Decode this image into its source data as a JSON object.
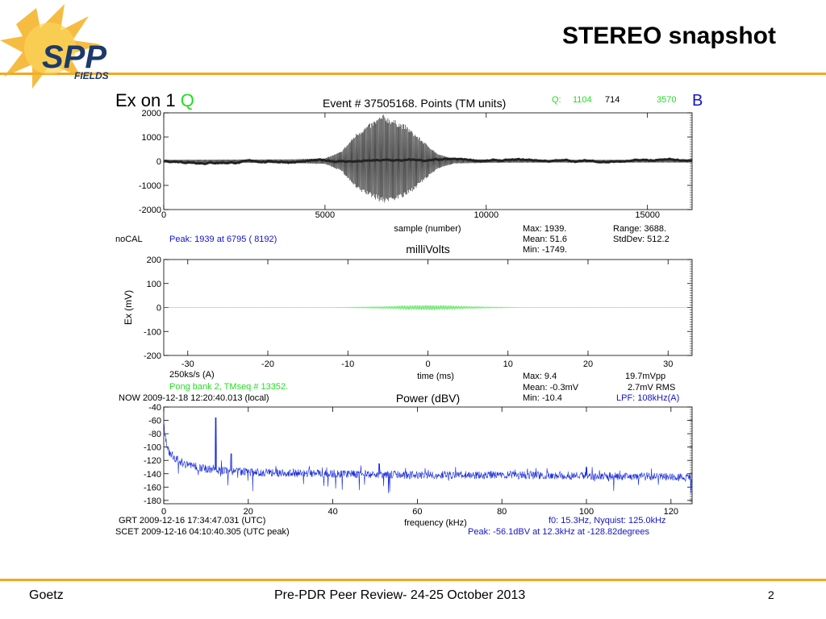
{
  "slide": {
    "title": "STEREO snapshot",
    "logo_text": "SPP",
    "logo_sub": "FIELDS",
    "footer_left": "Goetz",
    "footer_center": "Pre-PDR Peer Review- 24-25 October 2013",
    "page_number": "2",
    "accent_color": "#f5a623"
  },
  "header": {
    "channel": "Ex on 1",
    "channel_q": "Q",
    "event": "Event # 37505168. Points (TM units)",
    "q_label": "Q:",
    "q_value": "1104",
    "mid_value": "714",
    "b_value": "3570",
    "b_label": "B"
  },
  "panel1": {
    "stats": {
      "max": "Max:    1939.",
      "mean": "Mean:     51.6",
      "min": "Min:   -1749.",
      "range": "Range:   3688.",
      "stddev": "StdDev:    512.2"
    },
    "nocal": "noCAL",
    "peak": "Peak:   1939 at  6795 ( 8192)"
  },
  "panel2": {
    "rate": "250ks/s (A)",
    "pong": "Pong bank   2, TMseq # 13352.",
    "now": "NOW 2009-12-18 12:20:40.013 (local)",
    "stats": {
      "max": "Max:      9.4",
      "mean": "Mean:     -0.3mV",
      "min": "Min:     -10.4",
      "vpp": "19.7mVpp",
      "rms": "2.7mV RMS",
      "lpf": "LPF: 108kHz(A)"
    }
  },
  "panel3": {
    "grt": "GRT 2009-12-16 17:34:47.031 (UTC)",
    "scet": "SCET 2009-12-16 04:10:40.305 (UTC peak)",
    "f0": "f0:  15.3Hz, Nyquist: 125.0kHz",
    "peak": "Peak:  -56.1dBV at   12.3kHz at -128.82degrees"
  },
  "chart_data": [
    {
      "type": "line",
      "title": "",
      "xlabel": "sample (number)",
      "ylabel": "",
      "xlim": [
        0,
        16384
      ],
      "ylim": [
        -2000,
        2000
      ],
      "xticks": [
        "0",
        "5000",
        "10000",
        "15000"
      ],
      "yticks": [
        "2000",
        "1000",
        "0",
        "-1000",
        "-2000"
      ],
      "series": [
        {
          "color": "#333333",
          "envelope_x": [
            0,
            2000,
            4000,
            5000,
            5500,
            6000,
            6795,
            7500,
            8000,
            8500,
            9000,
            10000,
            12000,
            16384
          ],
          "envelope_max": [
            60,
            70,
            80,
            120,
            400,
            1200,
            1939,
            1500,
            900,
            300,
            100,
            70,
            60,
            60
          ],
          "envelope_min": [
            -60,
            -70,
            -80,
            -120,
            -400,
            -1200,
            -1749,
            -1500,
            -900,
            -300,
            -100,
            -70,
            -60,
            -60
          ]
        }
      ]
    },
    {
      "type": "line",
      "title": "milliVolts",
      "xlabel": "time (ms)",
      "ylabel": "Ex (mV)",
      "xlim": [
        -33,
        33
      ],
      "ylim": [
        -200,
        200
      ],
      "xticks": [
        "-30",
        "-20",
        "-10",
        "0",
        "10",
        "20",
        "30"
      ],
      "yticks": [
        "200",
        "100",
        "0",
        "-100",
        "-200"
      ],
      "series": [
        {
          "color": "#33dd33",
          "envelope_x": [
            -33,
            -15,
            -10,
            -5,
            -3,
            0,
            3,
            5,
            10,
            15,
            33
          ],
          "envelope_max": [
            0.5,
            0.8,
            2,
            5,
            8,
            9.4,
            8,
            5,
            2,
            0.8,
            0.5
          ],
          "envelope_min": [
            -0.5,
            -0.8,
            -2,
            -5,
            -8,
            -10.4,
            -8,
            -5,
            -2,
            -0.8,
            -0.5
          ]
        }
      ]
    },
    {
      "type": "line",
      "title": "Power (dBV)",
      "xlabel": "frequency (kHz)",
      "ylabel": "",
      "xlim": [
        0,
        125
      ],
      "ylim": [
        -185,
        -40
      ],
      "xticks": [
        "0",
        "20",
        "40",
        "60",
        "80",
        "100",
        "120"
      ],
      "yticks": [
        "-40",
        "-60",
        "-80",
        "-100",
        "-120",
        "-140",
        "-160",
        "-180"
      ],
      "series": [
        {
          "color": "#1428dc",
          "baseline_x": [
            0,
            0.5,
            1,
            2,
            3,
            5,
            8,
            12,
            20,
            40,
            60,
            80,
            100,
            125
          ],
          "baseline_y": [
            -65,
            -90,
            -105,
            -112,
            -118,
            -125,
            -130,
            -134,
            -138,
            -140,
            -142,
            -142,
            -143,
            -145
          ],
          "peaks": [
            {
              "x": 12.3,
              "y": -56.1
            },
            {
              "x": 16,
              "y": -110
            },
            {
              "x": 51,
              "y": -125
            },
            {
              "x": 100,
              "y": -130
            }
          ]
        }
      ]
    }
  ]
}
